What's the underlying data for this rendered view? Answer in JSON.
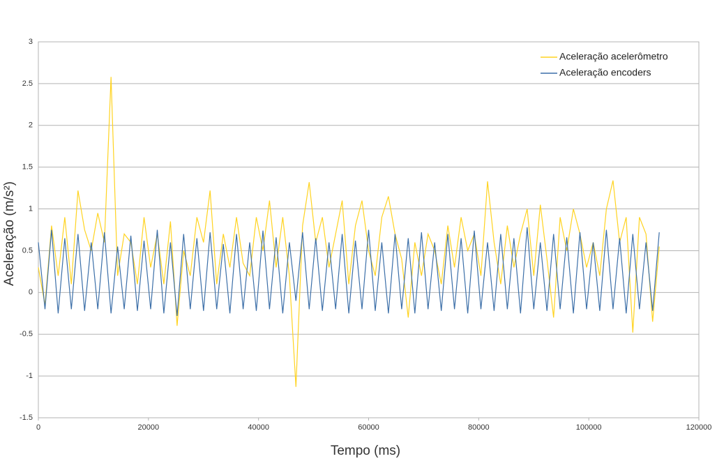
{
  "chart_data": {
    "type": "line",
    "xlabel": "Tempo (ms)",
    "ylabel": "Aceleração (m/s²)",
    "x": [
      0,
      1200,
      2400,
      3600,
      4800,
      6000,
      7200,
      8400,
      9600,
      10800,
      12000,
      13200,
      14400,
      15600,
      16800,
      18000,
      19200,
      20400,
      21600,
      22800,
      24000,
      25200,
      26400,
      27600,
      28800,
      30000,
      31200,
      32400,
      33600,
      34800,
      36000,
      37200,
      38400,
      39600,
      40800,
      42000,
      43200,
      44400,
      45600,
      46800,
      48000,
      49200,
      50400,
      51600,
      52800,
      54000,
      55200,
      56400,
      57600,
      58800,
      60000,
      61200,
      62400,
      63600,
      64800,
      66000,
      67200,
      68400,
      69600,
      70800,
      72000,
      73200,
      74400,
      75600,
      76800,
      78000,
      79200,
      80400,
      81600,
      82800,
      84000,
      85200,
      86400,
      87600,
      88800,
      90000,
      91200,
      92400,
      93600,
      94800,
      96000,
      97200,
      98400,
      99600,
      100800,
      102000,
      103200,
      104400,
      105600,
      106800,
      108000,
      109200,
      110400,
      111600,
      112800
    ],
    "series": [
      {
        "name": "Aceleração acelerômetro",
        "color": "#ffd320",
        "values": [
          0.3,
          -0.15,
          0.8,
          0.2,
          0.9,
          0.1,
          1.22,
          0.75,
          0.5,
          0.95,
          0.6,
          2.58,
          0.2,
          0.7,
          0.6,
          0.1,
          0.9,
          0.3,
          0.7,
          0.1,
          0.85,
          -0.4,
          0.5,
          0.2,
          0.9,
          0.6,
          1.22,
          0.1,
          0.7,
          0.3,
          0.9,
          0.35,
          0.2,
          0.9,
          0.5,
          1.1,
          0.3,
          0.9,
          0.2,
          -1.13,
          0.8,
          1.32,
          0.6,
          0.9,
          0.3,
          0.7,
          1.1,
          0.1,
          0.8,
          1.1,
          0.5,
          0.2,
          0.9,
          1.15,
          0.7,
          0.4,
          -0.3,
          0.6,
          0.2,
          0.7,
          0.5,
          0.1,
          0.8,
          0.3,
          0.9,
          0.5,
          0.7,
          0.2,
          1.33,
          0.6,
          0.1,
          0.8,
          0.3,
          0.7,
          1.0,
          0.2,
          1.05,
          0.4,
          -0.3,
          0.9,
          0.5,
          1.0,
          0.7,
          0.3,
          0.6,
          0.2,
          1.0,
          1.34,
          0.6,
          0.9,
          -0.48,
          0.9,
          0.7,
          -0.35,
          0.55
        ]
      },
      {
        "name": "Aceleração encoders",
        "color": "#3c6fa8",
        "values": [
          0.6,
          -0.2,
          0.75,
          -0.25,
          0.65,
          -0.2,
          0.7,
          -0.22,
          0.6,
          -0.2,
          0.72,
          -0.25,
          0.55,
          -0.2,
          0.68,
          -0.22,
          0.62,
          -0.2,
          0.75,
          -0.25,
          0.6,
          -0.28,
          0.7,
          -0.2,
          0.65,
          -0.22,
          0.72,
          -0.2,
          0.58,
          -0.25,
          0.7,
          -0.2,
          0.6,
          -0.22,
          0.74,
          -0.2,
          0.66,
          -0.25,
          0.6,
          -0.1,
          0.72,
          -0.2,
          0.65,
          -0.22,
          0.6,
          -0.2,
          0.7,
          -0.25,
          0.62,
          -0.2,
          0.75,
          -0.22,
          0.6,
          -0.25,
          0.7,
          -0.2,
          0.65,
          -0.25,
          0.72,
          -0.2,
          0.6,
          -0.22,
          0.7,
          -0.2,
          0.65,
          -0.25,
          0.74,
          -0.2,
          0.6,
          -0.22,
          0.7,
          -0.2,
          0.65,
          -0.25,
          0.78,
          -0.2,
          0.6,
          -0.22,
          0.7,
          -0.2,
          0.66,
          -0.25,
          0.72,
          -0.2,
          0.6,
          -0.22,
          0.75,
          -0.2,
          0.65,
          -0.25,
          0.7,
          -0.2,
          0.6,
          -0.22,
          0.72
        ]
      }
    ],
    "xlim": [
      0,
      120000
    ],
    "xticks": [
      0,
      20000,
      40000,
      60000,
      80000,
      100000,
      120000
    ],
    "ylim": [
      -1.5,
      3
    ],
    "yticks": [
      3,
      2.5,
      2,
      1.5,
      1,
      0.5,
      0,
      -0.5,
      -1,
      -1.5
    ],
    "grid": true,
    "legend": "upper right"
  }
}
